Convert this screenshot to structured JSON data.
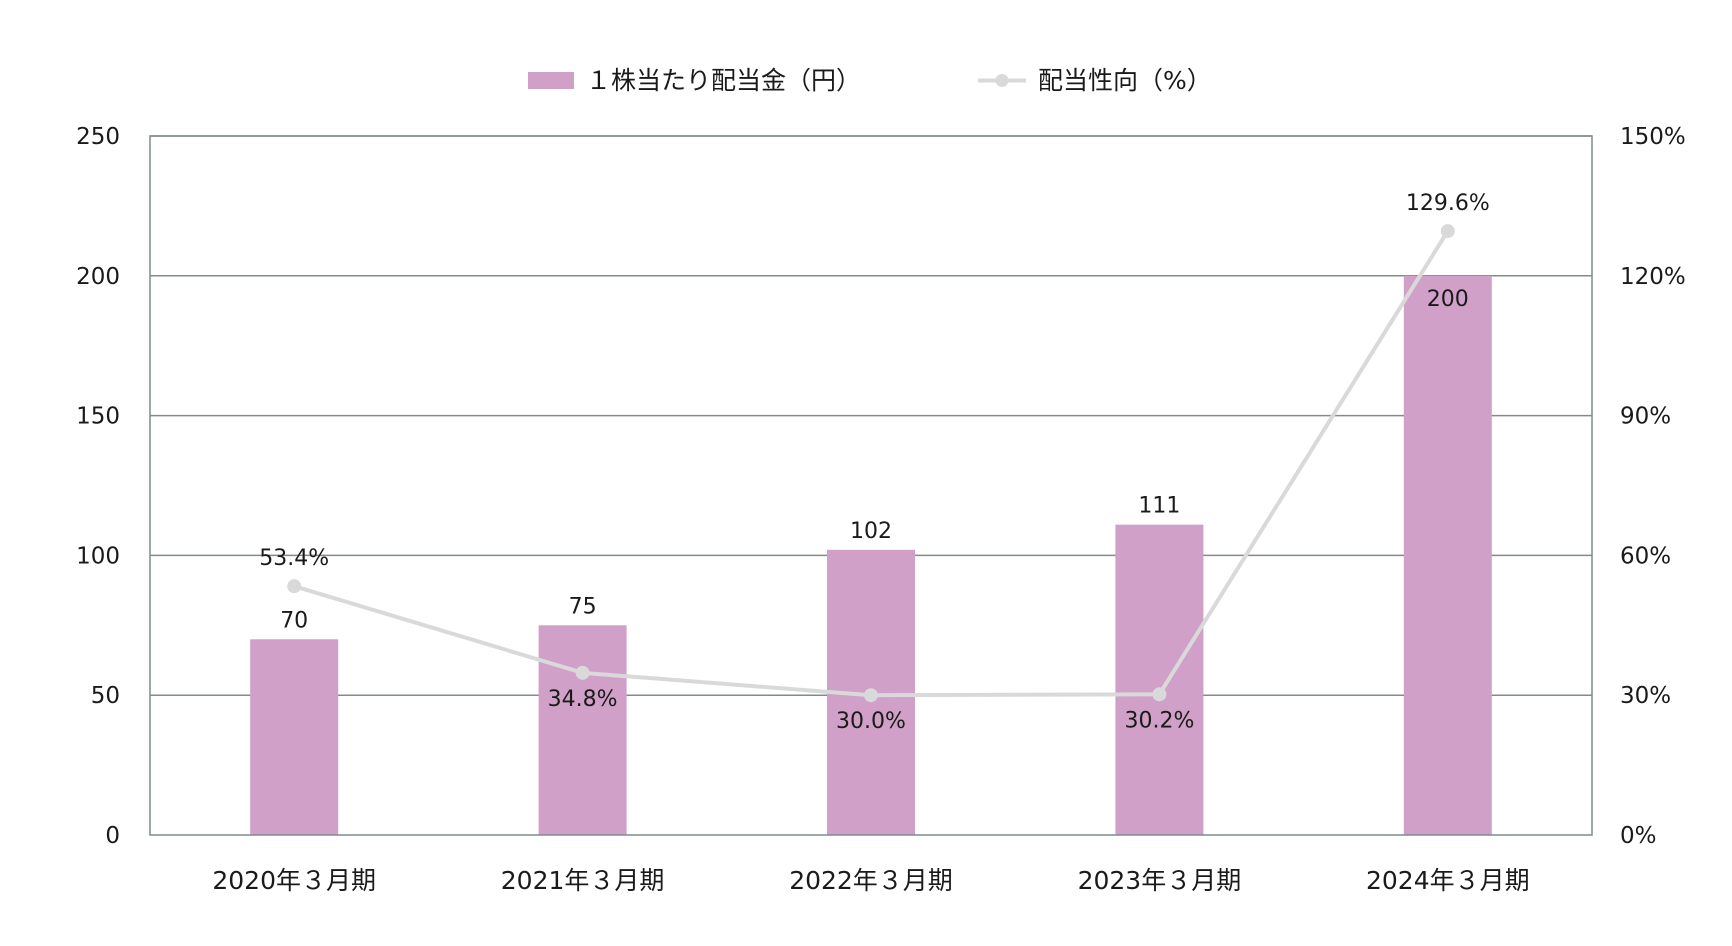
{
  "chart_data": {
    "type": "bar",
    "categories": [
      "2020年３月期",
      "2021年３月期",
      "2022年３月期",
      "2023年３月期",
      "2024年３月期"
    ],
    "series": [
      {
        "name": "１株当たり配当金（円）",
        "type": "bar",
        "axis": "left",
        "color": "#d0a0c8",
        "values": [
          70,
          75,
          102,
          111,
          200
        ],
        "labels": [
          "70",
          "75",
          "102",
          "111",
          "200"
        ]
      },
      {
        "name": "配当性向（%）",
        "type": "line",
        "axis": "right",
        "color": "#d9d9d9",
        "values": [
          53.4,
          34.8,
          30.0,
          30.2,
          129.6
        ],
        "labels": [
          "53.4%",
          "34.8%",
          "30.0%",
          "30.2%",
          "129.6%"
        ]
      }
    ],
    "y_left": {
      "ylim": [
        0,
        250
      ],
      "ticks": [
        "0",
        "50",
        "100",
        "150",
        "200",
        "250"
      ]
    },
    "y_right": {
      "ylim": [
        0,
        150
      ],
      "ticks": [
        "0%",
        "30%",
        "60%",
        "90%",
        "120%",
        "150%"
      ]
    },
    "grid": true,
    "legend": "top-center",
    "colors": {
      "grid": "#7f8c8a",
      "axis": "#7f8c8a"
    }
  }
}
